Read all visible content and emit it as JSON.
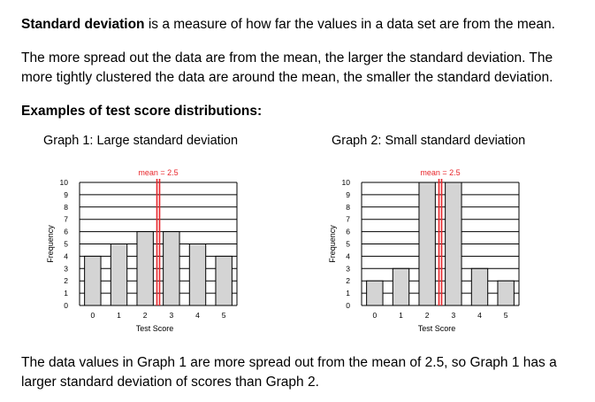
{
  "intro": {
    "term": "Standard deviation",
    "definition": " is a measure of how far the values in a data set are from the mean."
  },
  "spread_text": "The more spread out the data are from the mean, the larger the standard deviation. The more tightly clustered the data are around the mean, the smaller the standard deviation.",
  "examples_heading": "Examples of test score distributions:",
  "conclusion": "The data values in Graph 1 are more spread out from the mean of 2.5, so Graph 1 has a larger standard deviation of scores than Graph 2.",
  "colors": {
    "bar_fill": "#d4d4d4",
    "mean_line": "#e8262b",
    "grid": "#000000"
  },
  "chart_data": [
    {
      "type": "bar",
      "title": "Graph 1: Large standard deviation",
      "categories": [
        "0",
        "1",
        "2",
        "3",
        "4",
        "5"
      ],
      "values": [
        4,
        5,
        6,
        6,
        5,
        4
      ],
      "xlabel": "Test Score",
      "ylabel": "Frequency",
      "ylim": [
        0,
        10
      ],
      "yticks": [
        "0",
        "1",
        "2",
        "3",
        "4",
        "5",
        "6",
        "7",
        "8",
        "9",
        "10"
      ],
      "mean": 2.5,
      "mean_label": "mean = 2.5",
      "grid": true
    },
    {
      "type": "bar",
      "title": "Graph 2: Small standard deviation",
      "categories": [
        "0",
        "1",
        "2",
        "3",
        "4",
        "5"
      ],
      "values": [
        2,
        3,
        10,
        10,
        3,
        2
      ],
      "xlabel": "Test Score",
      "ylabel": "Frequency",
      "ylim": [
        0,
        10
      ],
      "yticks": [
        "0",
        "1",
        "2",
        "3",
        "4",
        "5",
        "6",
        "7",
        "8",
        "9",
        "10"
      ],
      "mean": 2.5,
      "mean_label": "mean = 2.5",
      "grid": true
    }
  ]
}
